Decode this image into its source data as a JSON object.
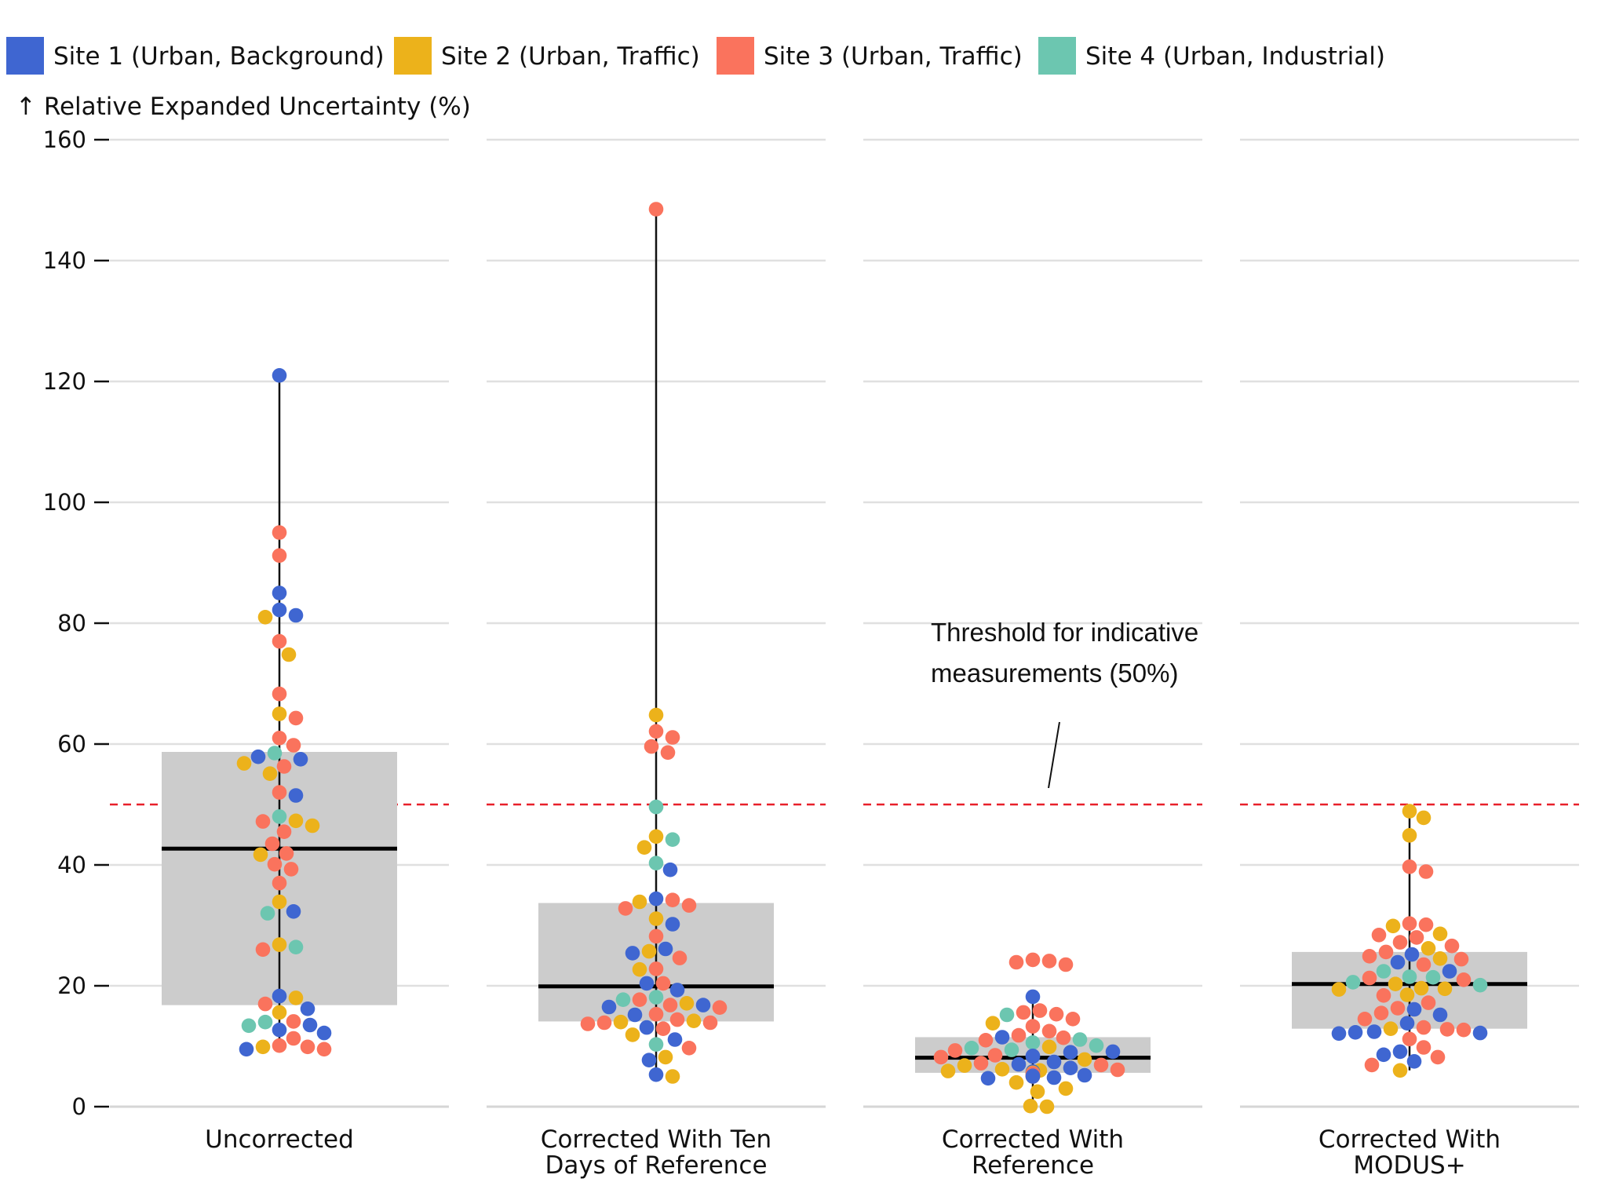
{
  "chart_data": {
    "type": "box-beeswarm",
    "ylabel": "↑ Relative Expanded Uncertainty (%)",
    "ylim": [
      0,
      160
    ],
    "yticks": [
      0,
      20,
      40,
      60,
      80,
      100,
      120,
      140,
      160
    ],
    "grid": true,
    "legend_position": "top",
    "threshold": {
      "value": 50,
      "color": "#e8202a",
      "label_lines": [
        "Threshold for indicative",
        "measurements (50%)"
      ]
    },
    "sites": [
      {
        "id": 1,
        "name": "Site 1 (Urban, Background)",
        "color": "#3f66d1"
      },
      {
        "id": 2,
        "name": "Site 2 (Urban, Traffic)",
        "color": "#ecb21b"
      },
      {
        "id": 3,
        "name": "Site 3 (Urban, Traffic)",
        "color": "#fa735d"
      },
      {
        "id": 4,
        "name": "Site 4 (Urban, Industrial)",
        "color": "#6cc6b0"
      }
    ],
    "groups": [
      {
        "label_lines": [
          "Uncorrected"
        ],
        "box": {
          "q1": 16.8,
          "median": 42.7,
          "q3": 58.7,
          "whisker_low": 9.5,
          "whisker_high": 121
        },
        "points": [
          {
            "s": 1,
            "y": 121
          },
          {
            "s": 3,
            "y": 95
          },
          {
            "s": 3,
            "y": 91.2
          },
          {
            "s": 1,
            "y": 85
          },
          {
            "s": 1,
            "y": 82.2
          },
          {
            "s": 2,
            "y": 81
          },
          {
            "s": 1,
            "y": 81.3
          },
          {
            "s": 3,
            "y": 77
          },
          {
            "s": 2,
            "y": 74.8
          },
          {
            "s": 3,
            "y": 68.3
          },
          {
            "s": 3,
            "y": 64.3
          },
          {
            "s": 2,
            "y": 65
          },
          {
            "s": 3,
            "y": 61
          },
          {
            "s": 3,
            "y": 59.8
          },
          {
            "s": 1,
            "y": 57.9
          },
          {
            "s": 4,
            "y": 58.5
          },
          {
            "s": 1,
            "y": 57.5
          },
          {
            "s": 2,
            "y": 56.8
          },
          {
            "s": 3,
            "y": 56.3
          },
          {
            "s": 2,
            "y": 55.1
          },
          {
            "s": 1,
            "y": 51.5
          },
          {
            "s": 3,
            "y": 52
          },
          {
            "s": 4,
            "y": 48
          },
          {
            "s": 2,
            "y": 47.3
          },
          {
            "s": 3,
            "y": 47.2
          },
          {
            "s": 2,
            "y": 46.5
          },
          {
            "s": 3,
            "y": 45.5
          },
          {
            "s": 3,
            "y": 43.5
          },
          {
            "s": 3,
            "y": 41.9
          },
          {
            "s": 2,
            "y": 41.7
          },
          {
            "s": 3,
            "y": 40.1
          },
          {
            "s": 3,
            "y": 39.3
          },
          {
            "s": 3,
            "y": 37
          },
          {
            "s": 2,
            "y": 33.9
          },
          {
            "s": 1,
            "y": 32.3
          },
          {
            "s": 4,
            "y": 32
          },
          {
            "s": 2,
            "y": 26.8
          },
          {
            "s": 4,
            "y": 26.4
          },
          {
            "s": 3,
            "y": 26
          },
          {
            "s": 1,
            "y": 18.3
          },
          {
            "s": 2,
            "y": 18
          },
          {
            "s": 3,
            "y": 17
          },
          {
            "s": 1,
            "y": 16.2
          },
          {
            "s": 2,
            "y": 15.6
          },
          {
            "s": 3,
            "y": 14.1
          },
          {
            "s": 4,
            "y": 14
          },
          {
            "s": 1,
            "y": 13.5
          },
          {
            "s": 4,
            "y": 13.4
          },
          {
            "s": 1,
            "y": 12.7
          },
          {
            "s": 1,
            "y": 12.2
          },
          {
            "s": 3,
            "y": 11.3
          },
          {
            "s": 3,
            "y": 10.1
          },
          {
            "s": 2,
            "y": 9.9
          },
          {
            "s": 1,
            "y": 9.5
          },
          {
            "s": 3,
            "y": 9.5
          },
          {
            "s": 3,
            "y": 9.9
          }
        ]
      },
      {
        "label_lines": [
          "Corrected With Ten",
          "Days of Reference"
        ],
        "box": {
          "q1": 14.1,
          "median": 19.9,
          "q3": 33.7,
          "whisker_low": 5,
          "whisker_high": 148.5
        },
        "points": [
          {
            "s": 3,
            "y": 148.5
          },
          {
            "s": 2,
            "y": 64.8
          },
          {
            "s": 3,
            "y": 62.1
          },
          {
            "s": 3,
            "y": 61.1
          },
          {
            "s": 3,
            "y": 59.6
          },
          {
            "s": 3,
            "y": 58.6
          },
          {
            "s": 4,
            "y": 49.6
          },
          {
            "s": 2,
            "y": 44.7
          },
          {
            "s": 4,
            "y": 44.2
          },
          {
            "s": 2,
            "y": 42.9
          },
          {
            "s": 4,
            "y": 40.3
          },
          {
            "s": 1,
            "y": 39.2
          },
          {
            "s": 1,
            "y": 34.4
          },
          {
            "s": 3,
            "y": 34.2
          },
          {
            "s": 2,
            "y": 33.9
          },
          {
            "s": 3,
            "y": 33.3
          },
          {
            "s": 3,
            "y": 32.8
          },
          {
            "s": 2,
            "y": 31.1
          },
          {
            "s": 1,
            "y": 30.2
          },
          {
            "s": 3,
            "y": 28.2
          },
          {
            "s": 1,
            "y": 26.1
          },
          {
            "s": 2,
            "y": 25.7
          },
          {
            "s": 1,
            "y": 25.4
          },
          {
            "s": 3,
            "y": 24.6
          },
          {
            "s": 3,
            "y": 22.8
          },
          {
            "s": 2,
            "y": 22.7
          },
          {
            "s": 3,
            "y": 20.4
          },
          {
            "s": 1,
            "y": 20.4
          },
          {
            "s": 1,
            "y": 19.3
          },
          {
            "s": 4,
            "y": 18.1
          },
          {
            "s": 3,
            "y": 17.7
          },
          {
            "s": 4,
            "y": 17.7
          },
          {
            "s": 2,
            "y": 17.1
          },
          {
            "s": 3,
            "y": 16.8
          },
          {
            "s": 1,
            "y": 16.8
          },
          {
            "s": 1,
            "y": 16.5
          },
          {
            "s": 3,
            "y": 16.4
          },
          {
            "s": 3,
            "y": 15.3
          },
          {
            "s": 1,
            "y": 15.2
          },
          {
            "s": 3,
            "y": 14.4
          },
          {
            "s": 2,
            "y": 14.2
          },
          {
            "s": 2,
            "y": 14
          },
          {
            "s": 3,
            "y": 13.9
          },
          {
            "s": 3,
            "y": 13.9
          },
          {
            "s": 3,
            "y": 13.7
          },
          {
            "s": 1,
            "y": 13.1
          },
          {
            "s": 3,
            "y": 12.9
          },
          {
            "s": 2,
            "y": 11.9
          },
          {
            "s": 1,
            "y": 11.1
          },
          {
            "s": 4,
            "y": 10.3
          },
          {
            "s": 3,
            "y": 9.7
          },
          {
            "s": 2,
            "y": 8.2
          },
          {
            "s": 1,
            "y": 7.7
          },
          {
            "s": 1,
            "y": 5.3
          },
          {
            "s": 2,
            "y": 5
          }
        ]
      },
      {
        "label_lines": [
          "Corrected With",
          "Reference"
        ],
        "box": {
          "q1": 5.6,
          "median": 8.1,
          "q3": 11.5,
          "whisker_low": 0.1,
          "whisker_high": 18.2
        },
        "points": [
          {
            "s": 3,
            "y": 24.3
          },
          {
            "s": 3,
            "y": 24.1
          },
          {
            "s": 3,
            "y": 23.9
          },
          {
            "s": 3,
            "y": 23.5
          },
          {
            "s": 1,
            "y": 18.2
          },
          {
            "s": 3,
            "y": 15.9
          },
          {
            "s": 3,
            "y": 15.6
          },
          {
            "s": 3,
            "y": 15.3
          },
          {
            "s": 4,
            "y": 15.2
          },
          {
            "s": 3,
            "y": 14.5
          },
          {
            "s": 2,
            "y": 13.8
          },
          {
            "s": 3,
            "y": 13.3
          },
          {
            "s": 3,
            "y": 12.5
          },
          {
            "s": 3,
            "y": 11.8
          },
          {
            "s": 3,
            "y": 11.4
          },
          {
            "s": 1,
            "y": 11.5
          },
          {
            "s": 4,
            "y": 11.1
          },
          {
            "s": 3,
            "y": 11
          },
          {
            "s": 4,
            "y": 10.6
          },
          {
            "s": 4,
            "y": 10.1
          },
          {
            "s": 2,
            "y": 9.9
          },
          {
            "s": 4,
            "y": 9.7
          },
          {
            "s": 4,
            "y": 9.4
          },
          {
            "s": 3,
            "y": 9.3
          },
          {
            "s": 1,
            "y": 9.1
          },
          {
            "s": 1,
            "y": 9
          },
          {
            "s": 3,
            "y": 8.5
          },
          {
            "s": 1,
            "y": 8.4
          },
          {
            "s": 1,
            "y": 8.3
          },
          {
            "s": 3,
            "y": 8.2
          },
          {
            "s": 2,
            "y": 7.8
          },
          {
            "s": 1,
            "y": 7.4
          },
          {
            "s": 3,
            "y": 7.2
          },
          {
            "s": 1,
            "y": 7
          },
          {
            "s": 3,
            "y": 6.9
          },
          {
            "s": 2,
            "y": 6.8
          },
          {
            "s": 1,
            "y": 6.4
          },
          {
            "s": 2,
            "y": 6.2
          },
          {
            "s": 3,
            "y": 6.1
          },
          {
            "s": 2,
            "y": 6
          },
          {
            "s": 2,
            "y": 5.9
          },
          {
            "s": 1,
            "y": 5.8
          },
          {
            "s": 2,
            "y": 5.6
          },
          {
            "s": 3,
            "y": 5.5
          },
          {
            "s": 3,
            "y": 5.3
          },
          {
            "s": 1,
            "y": 5.2
          },
          {
            "s": 1,
            "y": 5.1
          },
          {
            "s": 3,
            "y": 5
          },
          {
            "s": 1,
            "y": 5
          },
          {
            "s": 1,
            "y": 4.8
          },
          {
            "s": 1,
            "y": 4.7
          },
          {
            "s": 2,
            "y": 4
          },
          {
            "s": 2,
            "y": 3
          },
          {
            "s": 2,
            "y": 2.5
          },
          {
            "s": 2,
            "y": 0.1
          },
          {
            "s": 2,
            "y": 0
          }
        ]
      },
      {
        "label_lines": [
          "Corrected With",
          "MODUS+"
        ],
        "box": {
          "q1": 12.9,
          "median": 20.3,
          "q3": 25.6,
          "whisker_low": 6,
          "whisker_high": 48.9
        },
        "points": [
          {
            "s": 2,
            "y": 48.9
          },
          {
            "s": 2,
            "y": 47.8
          },
          {
            "s": 2,
            "y": 44.9
          },
          {
            "s": 3,
            "y": 39.7
          },
          {
            "s": 3,
            "y": 38.9
          },
          {
            "s": 3,
            "y": 30.3
          },
          {
            "s": 3,
            "y": 30.1
          },
          {
            "s": 2,
            "y": 29.9
          },
          {
            "s": 2,
            "y": 28.6
          },
          {
            "s": 3,
            "y": 28.4
          },
          {
            "s": 3,
            "y": 28
          },
          {
            "s": 3,
            "y": 27.2
          },
          {
            "s": 3,
            "y": 26.6
          },
          {
            "s": 2,
            "y": 26.2
          },
          {
            "s": 3,
            "y": 25.6
          },
          {
            "s": 1,
            "y": 25.2
          },
          {
            "s": 3,
            "y": 24.9
          },
          {
            "s": 2,
            "y": 24.5
          },
          {
            "s": 3,
            "y": 24.4
          },
          {
            "s": 1,
            "y": 23.9
          },
          {
            "s": 3,
            "y": 23.5
          },
          {
            "s": 4,
            "y": 22.4
          },
          {
            "s": 1,
            "y": 22.4
          },
          {
            "s": 3,
            "y": 21.3
          },
          {
            "s": 4,
            "y": 21.5
          },
          {
            "s": 4,
            "y": 21.4
          },
          {
            "s": 3,
            "y": 21
          },
          {
            "s": 4,
            "y": 20.6
          },
          {
            "s": 2,
            "y": 20.3
          },
          {
            "s": 4,
            "y": 20.1
          },
          {
            "s": 2,
            "y": 19.6
          },
          {
            "s": 2,
            "y": 19.5
          },
          {
            "s": 2,
            "y": 19.4
          },
          {
            "s": 2,
            "y": 18.5
          },
          {
            "s": 3,
            "y": 18.4
          },
          {
            "s": 3,
            "y": 17.2
          },
          {
            "s": 3,
            "y": 16.3
          },
          {
            "s": 1,
            "y": 16.1
          },
          {
            "s": 3,
            "y": 15.5
          },
          {
            "s": 1,
            "y": 15.2
          },
          {
            "s": 3,
            "y": 14.5
          },
          {
            "s": 1,
            "y": 13.8
          },
          {
            "s": 3,
            "y": 13.1
          },
          {
            "s": 2,
            "y": 12.9
          },
          {
            "s": 3,
            "y": 12.8
          },
          {
            "s": 3,
            "y": 12.7
          },
          {
            "s": 1,
            "y": 12.4
          },
          {
            "s": 1,
            "y": 12.3
          },
          {
            "s": 1,
            "y": 12.2
          },
          {
            "s": 1,
            "y": 12.1
          },
          {
            "s": 3,
            "y": 11.2
          },
          {
            "s": 3,
            "y": 9.8
          },
          {
            "s": 1,
            "y": 9.1
          },
          {
            "s": 1,
            "y": 8.6
          },
          {
            "s": 3,
            "y": 8.2
          },
          {
            "s": 1,
            "y": 7.5
          },
          {
            "s": 3,
            "y": 6.9
          },
          {
            "s": 2,
            "y": 6
          }
        ]
      }
    ]
  }
}
